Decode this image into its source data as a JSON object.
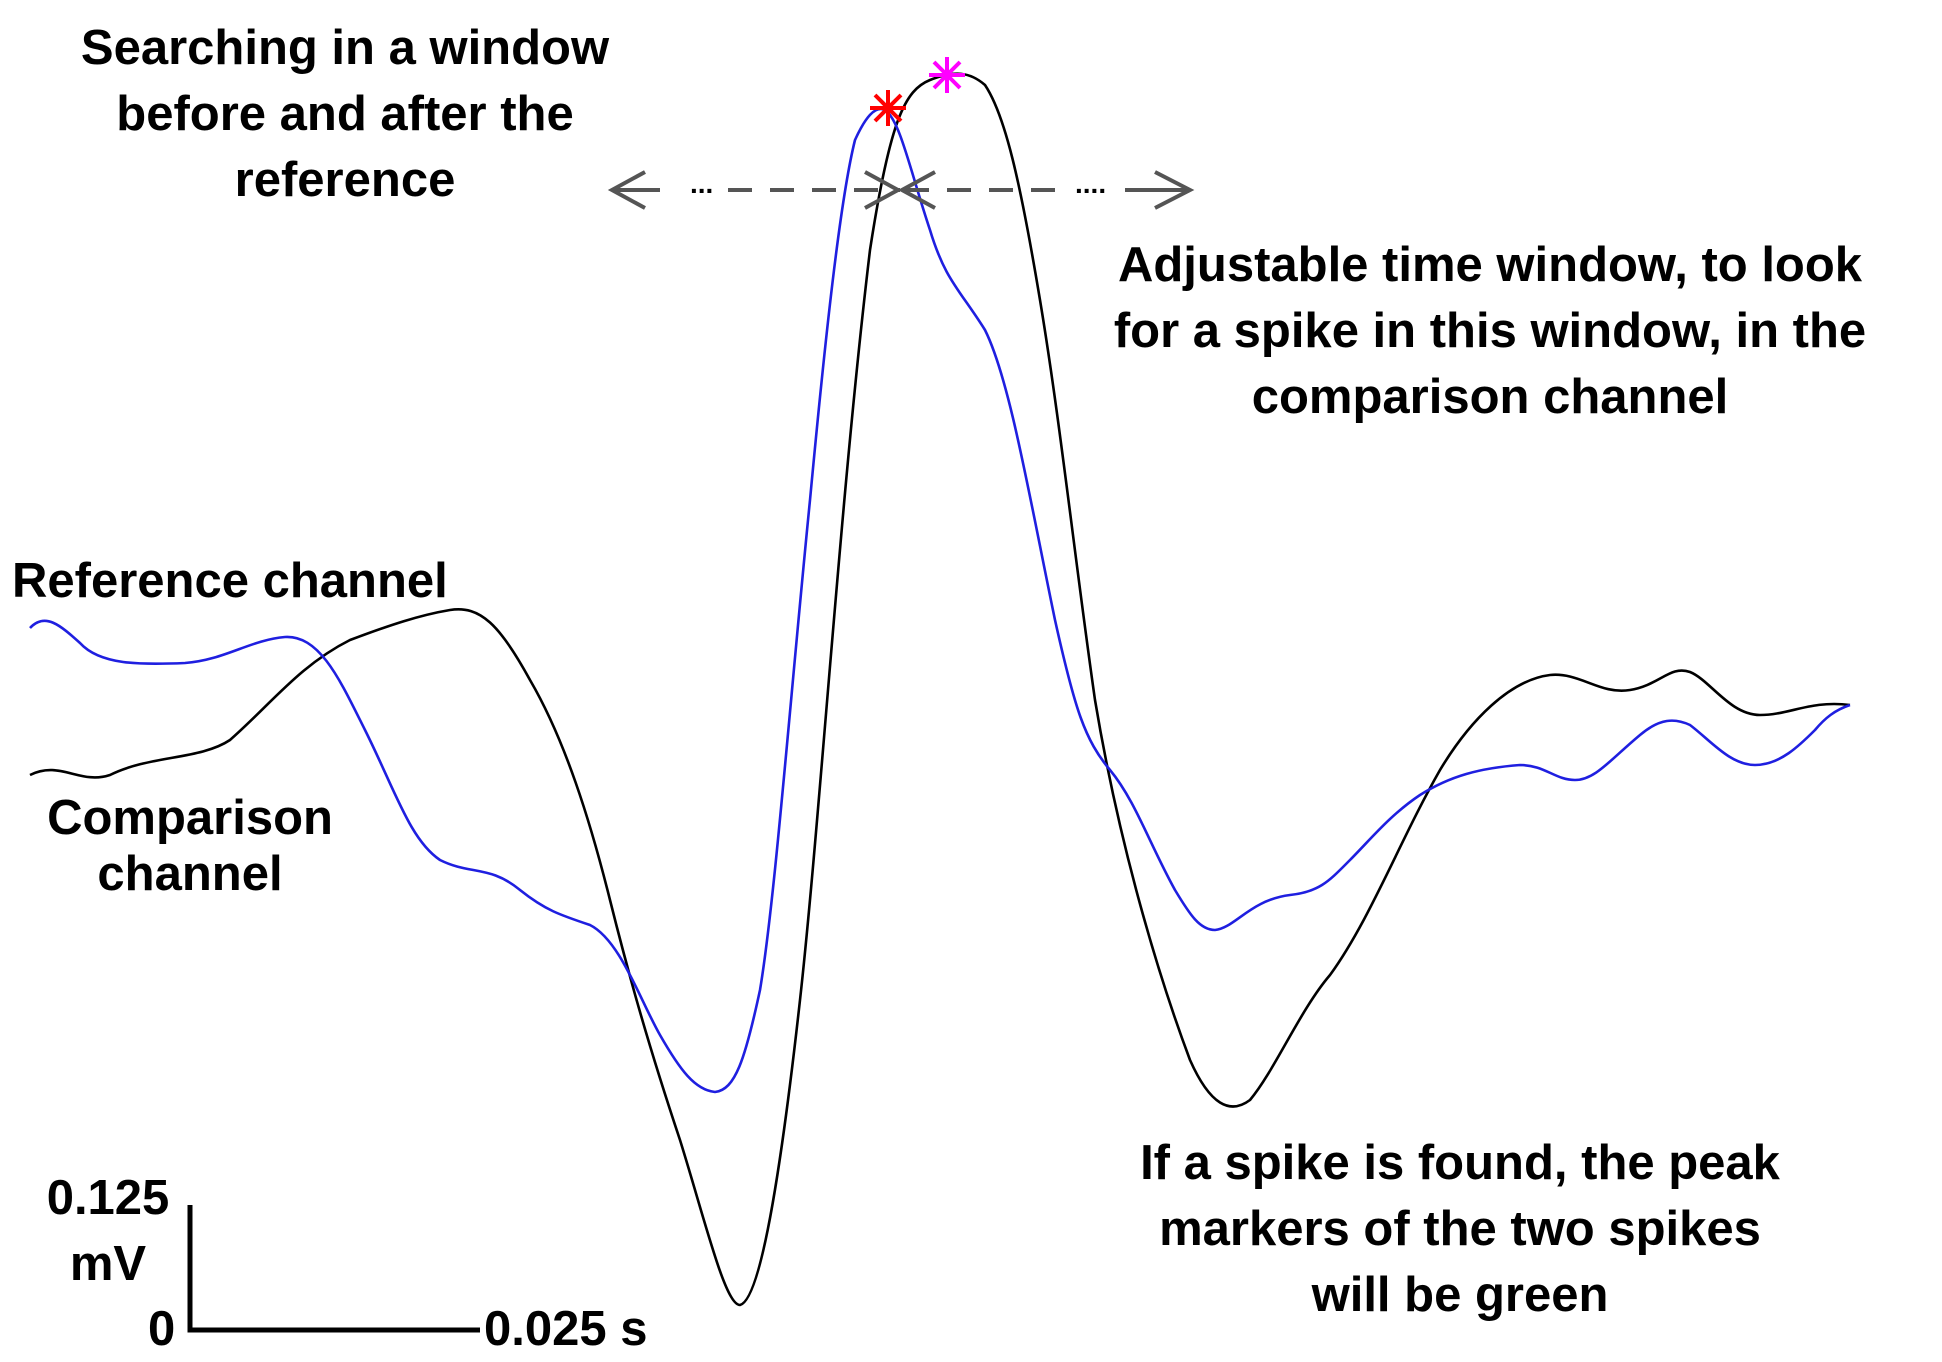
{
  "annotations": {
    "search_window": [
      "Searching in a window",
      "before and after the",
      "reference"
    ],
    "adjustable_window": [
      "Adjustable time window, to look",
      "for a spike in this window, in the",
      "comparison channel"
    ],
    "reference_channel": "Reference channel",
    "comparison_channel": [
      "Comparison",
      "channel"
    ],
    "spike_found": [
      "If a spike is found, the peak",
      "markers of the two spikes",
      "will be green"
    ],
    "arrow_dots_left": "...",
    "arrow_dots_right": "...."
  },
  "scale_bar": {
    "amplitude_label": [
      "0.125",
      "mV"
    ],
    "origin_label": "0",
    "time_label": "0.025 s"
  },
  "traces": {
    "reference": {
      "name": "Reference channel",
      "color": "#1f1fe0"
    },
    "comparison": {
      "name": "Comparison channel",
      "color": "#000000"
    }
  },
  "markers": {
    "reference_peak": {
      "color": "#ff0000",
      "symbol": "asterisk"
    },
    "comparison_peak": {
      "color": "#ff00ff",
      "symbol": "asterisk"
    }
  },
  "arrow_color": "#555555"
}
